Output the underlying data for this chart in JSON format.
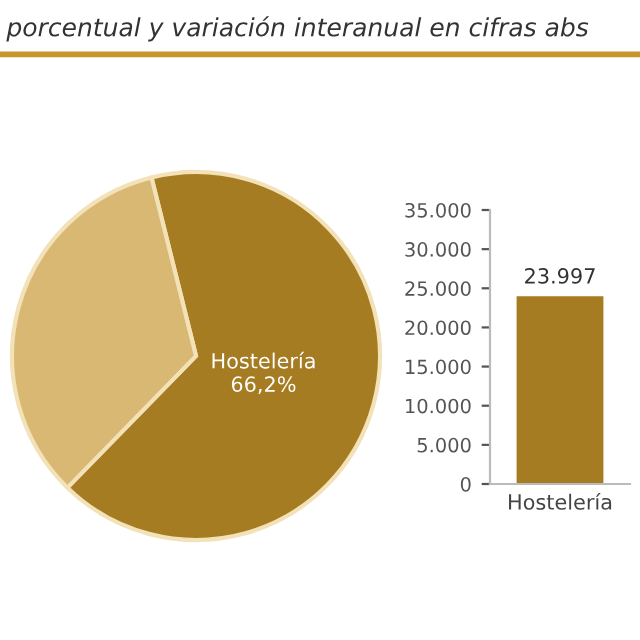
{
  "chart_data": [
    {
      "type": "pie",
      "title": "porcentual y variación interanual en cifras abs",
      "categories": [
        "Hostelería",
        null
      ],
      "values": [
        66.2,
        33.8
      ],
      "colors": [
        "#a67c23",
        "#d9b873"
      ],
      "value_labels": [
        "66,2%",
        null
      ]
    },
    {
      "type": "bar",
      "categories": [
        "Hostelería"
      ],
      "values": [
        23997
      ],
      "color": "#a67c23",
      "value_labels": [
        "23.997"
      ],
      "ylim": [
        0,
        35000
      ],
      "yticks": [
        {
          "value": 0,
          "label": "0"
        },
        {
          "value": 5000,
          "label": "5.000"
        },
        {
          "value": 10000,
          "label": "10.000"
        },
        {
          "value": 15000,
          "label": "15.000"
        },
        {
          "value": 20000,
          "label": "20.000"
        },
        {
          "value": 25000,
          "label": "25.000"
        },
        {
          "value": 30000,
          "label": "30.000"
        },
        {
          "value": 35000,
          "label": "35.000"
        }
      ],
      "grid": false,
      "legend": false
    }
  ]
}
